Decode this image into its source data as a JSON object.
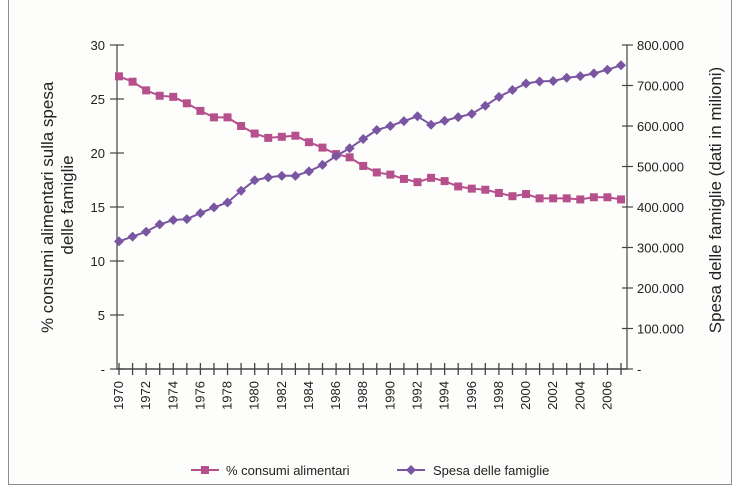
{
  "chart_data": {
    "type": "line",
    "x": [
      "1970",
      "1971",
      "1972",
      "1973",
      "1974",
      "1975",
      "1976",
      "1977",
      "1978",
      "1979",
      "1980",
      "1981",
      "1982",
      "1983",
      "1984",
      "1985",
      "1986",
      "1987",
      "1988",
      "1989",
      "1990",
      "1991",
      "1992",
      "1993",
      "1994",
      "1995",
      "1996",
      "1997",
      "1998",
      "1999",
      "2000",
      "2001",
      "2002",
      "2003",
      "2004",
      "2005",
      "2006",
      "2007"
    ],
    "x_tick_labels": [
      "1970",
      "1972",
      "1974",
      "1976",
      "1978",
      "1980",
      "1982",
      "1984",
      "1986",
      "1988",
      "1990",
      "1992",
      "1994",
      "1996",
      "1998",
      "2000",
      "2002",
      "2004",
      "2006"
    ],
    "y_left": {
      "label_lines": [
        "% consumi alimentari sulla spesa",
        "delle famiglie"
      ],
      "range": [
        0,
        30
      ],
      "ticks": [
        {
          "value": 0,
          "label": "-"
        },
        {
          "value": 5,
          "label": "5"
        },
        {
          "value": 10,
          "label": "10"
        },
        {
          "value": 15,
          "label": "15"
        },
        {
          "value": 20,
          "label": "20"
        },
        {
          "value": 25,
          "label": "25"
        },
        {
          "value": 30,
          "label": "30"
        }
      ]
    },
    "y_right": {
      "label": "Spesa delle famiglie (dati in milioni)",
      "range": [
        0,
        800000
      ],
      "ticks": [
        {
          "value": 0,
          "label": "-"
        },
        {
          "value": 100000,
          "label": "100.000"
        },
        {
          "value": 200000,
          "label": "200.000"
        },
        {
          "value": 300000,
          "label": "300.000"
        },
        {
          "value": 400000,
          "label": "400.000"
        },
        {
          "value": 500000,
          "label": "500.000"
        },
        {
          "value": 600000,
          "label": "600.000"
        },
        {
          "value": 700000,
          "label": "700.000"
        },
        {
          "value": 800000,
          "label": "800.000"
        }
      ]
    },
    "series": [
      {
        "name": "% consumi alimentari",
        "axis": "left",
        "marker": "square",
        "color": "#b5508c",
        "values": [
          27.1,
          26.6,
          25.8,
          25.3,
          25.2,
          24.6,
          23.9,
          23.3,
          23.3,
          22.5,
          21.8,
          21.4,
          21.5,
          21.6,
          21.0,
          20.5,
          19.9,
          19.6,
          18.8,
          18.2,
          18.0,
          17.6,
          17.3,
          17.7,
          17.4,
          16.9,
          16.7,
          16.6,
          16.3,
          16.0,
          16.2,
          15.8,
          15.8,
          15.8,
          15.7,
          15.9,
          15.9,
          15.7
        ]
      },
      {
        "name": "Spesa delle famiglie",
        "axis": "right",
        "marker": "diamond",
        "color": "#7a56a2",
        "values": [
          315000,
          327000,
          339000,
          357000,
          368000,
          370000,
          385000,
          399000,
          411000,
          440000,
          466000,
          473000,
          477000,
          477000,
          488000,
          504000,
          526000,
          545000,
          568000,
          590000,
          600000,
          612000,
          624000,
          603000,
          613000,
          622000,
          630000,
          650000,
          672000,
          689000,
          705000,
          710000,
          711000,
          719000,
          723000,
          730000,
          739000,
          750000
        ]
      }
    ],
    "legend_position": "bottom-center",
    "grid": false
  }
}
